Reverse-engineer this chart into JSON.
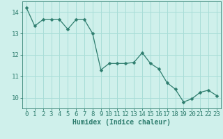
{
  "x": [
    0,
    1,
    2,
    3,
    4,
    5,
    6,
    7,
    8,
    9,
    10,
    11,
    12,
    13,
    14,
    15,
    16,
    17,
    18,
    19,
    20,
    21,
    22,
    23
  ],
  "y": [
    14.2,
    13.35,
    13.65,
    13.65,
    13.65,
    13.2,
    13.65,
    13.65,
    13.0,
    11.3,
    11.6,
    11.6,
    11.6,
    11.65,
    12.1,
    11.6,
    11.35,
    10.7,
    10.4,
    9.8,
    9.95,
    10.25,
    10.35,
    10.1
  ],
  "line_color": "#2e7d6e",
  "marker": "D",
  "marker_size": 2.5,
  "bg_color": "#cff0eb",
  "grid_color": "#a8ddd7",
  "xlabel": "Humidex (Indice chaleur)",
  "xlim": [
    -0.5,
    23.5
  ],
  "ylim": [
    9.5,
    14.5
  ],
  "yticks": [
    10,
    11,
    12,
    13,
    14
  ],
  "xticks": [
    0,
    1,
    2,
    3,
    4,
    5,
    6,
    7,
    8,
    9,
    10,
    11,
    12,
    13,
    14,
    15,
    16,
    17,
    18,
    19,
    20,
    21,
    22,
    23
  ],
  "tick_color": "#2e7d6e",
  "label_fontsize": 7,
  "tick_fontsize": 6.5
}
